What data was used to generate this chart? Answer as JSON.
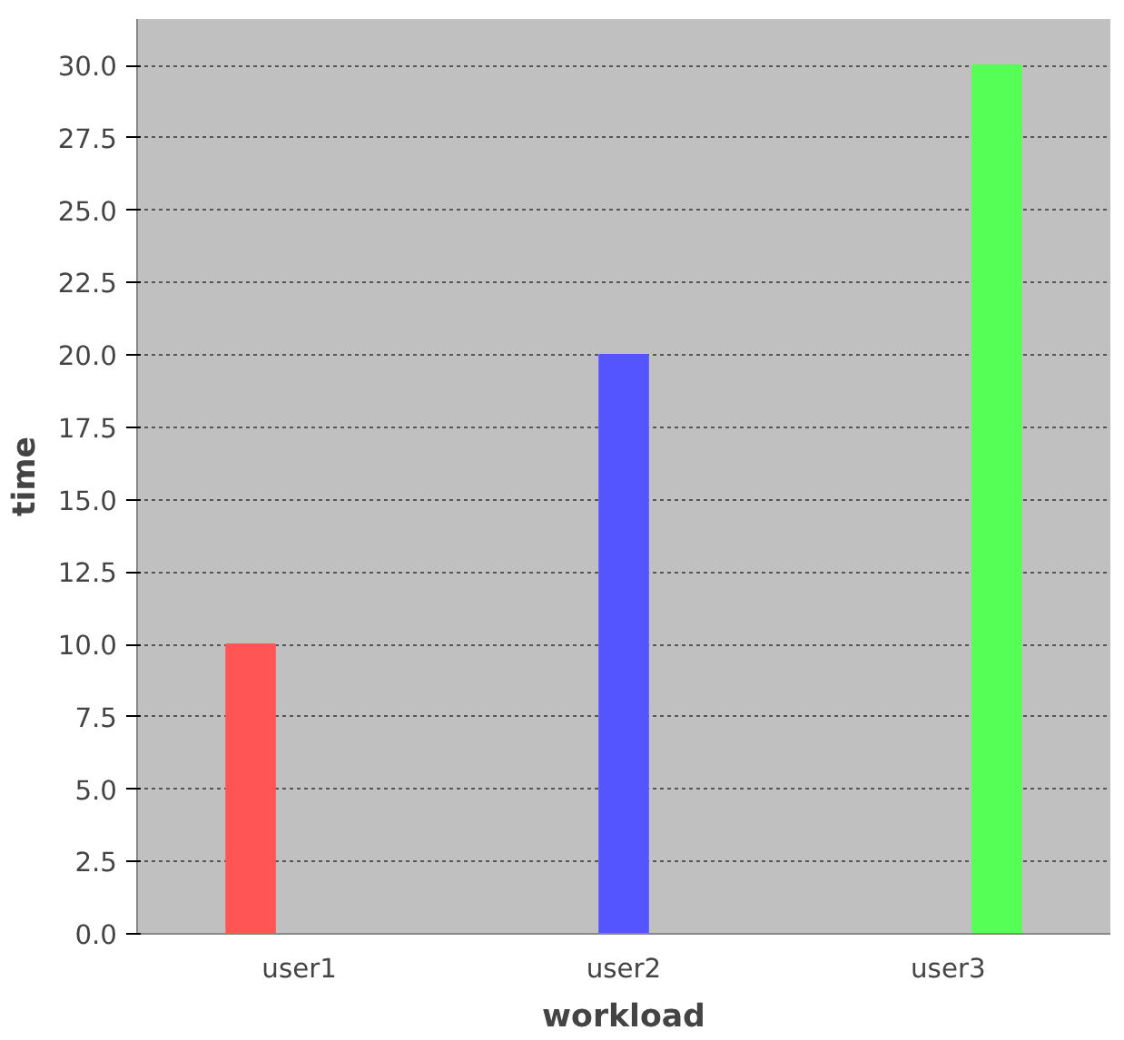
{
  "chart_data": {
    "type": "bar",
    "xlabel": "workload",
    "ylabel": "time",
    "categories": [
      "user1",
      "user2",
      "user3"
    ],
    "series": [
      {
        "color": "#ff5555",
        "values": [
          10,
          null,
          null
        ]
      },
      {
        "color": "#5555ff",
        "values": [
          null,
          20,
          null
        ]
      },
      {
        "color": "#55ff55",
        "values": [
          null,
          null,
          30
        ]
      }
    ],
    "ylim": [
      0,
      31.6
    ],
    "yticks": [
      {
        "value": 0,
        "label": "0.0"
      },
      {
        "value": 2.5,
        "label": "2.5"
      },
      {
        "value": 5,
        "label": "5.0"
      },
      {
        "value": 7.5,
        "label": "7.5"
      },
      {
        "value": 10,
        "label": "10.0"
      },
      {
        "value": 12.5,
        "label": "12.5"
      },
      {
        "value": 15,
        "label": "15.0"
      },
      {
        "value": 17.5,
        "label": "17.5"
      },
      {
        "value": 20,
        "label": "20.0"
      },
      {
        "value": 22.5,
        "label": "22.5"
      },
      {
        "value": 25,
        "label": "25.0"
      },
      {
        "value": 27.5,
        "label": "27.5"
      },
      {
        "value": 30,
        "label": "30.0"
      }
    ],
    "grid": "y"
  }
}
